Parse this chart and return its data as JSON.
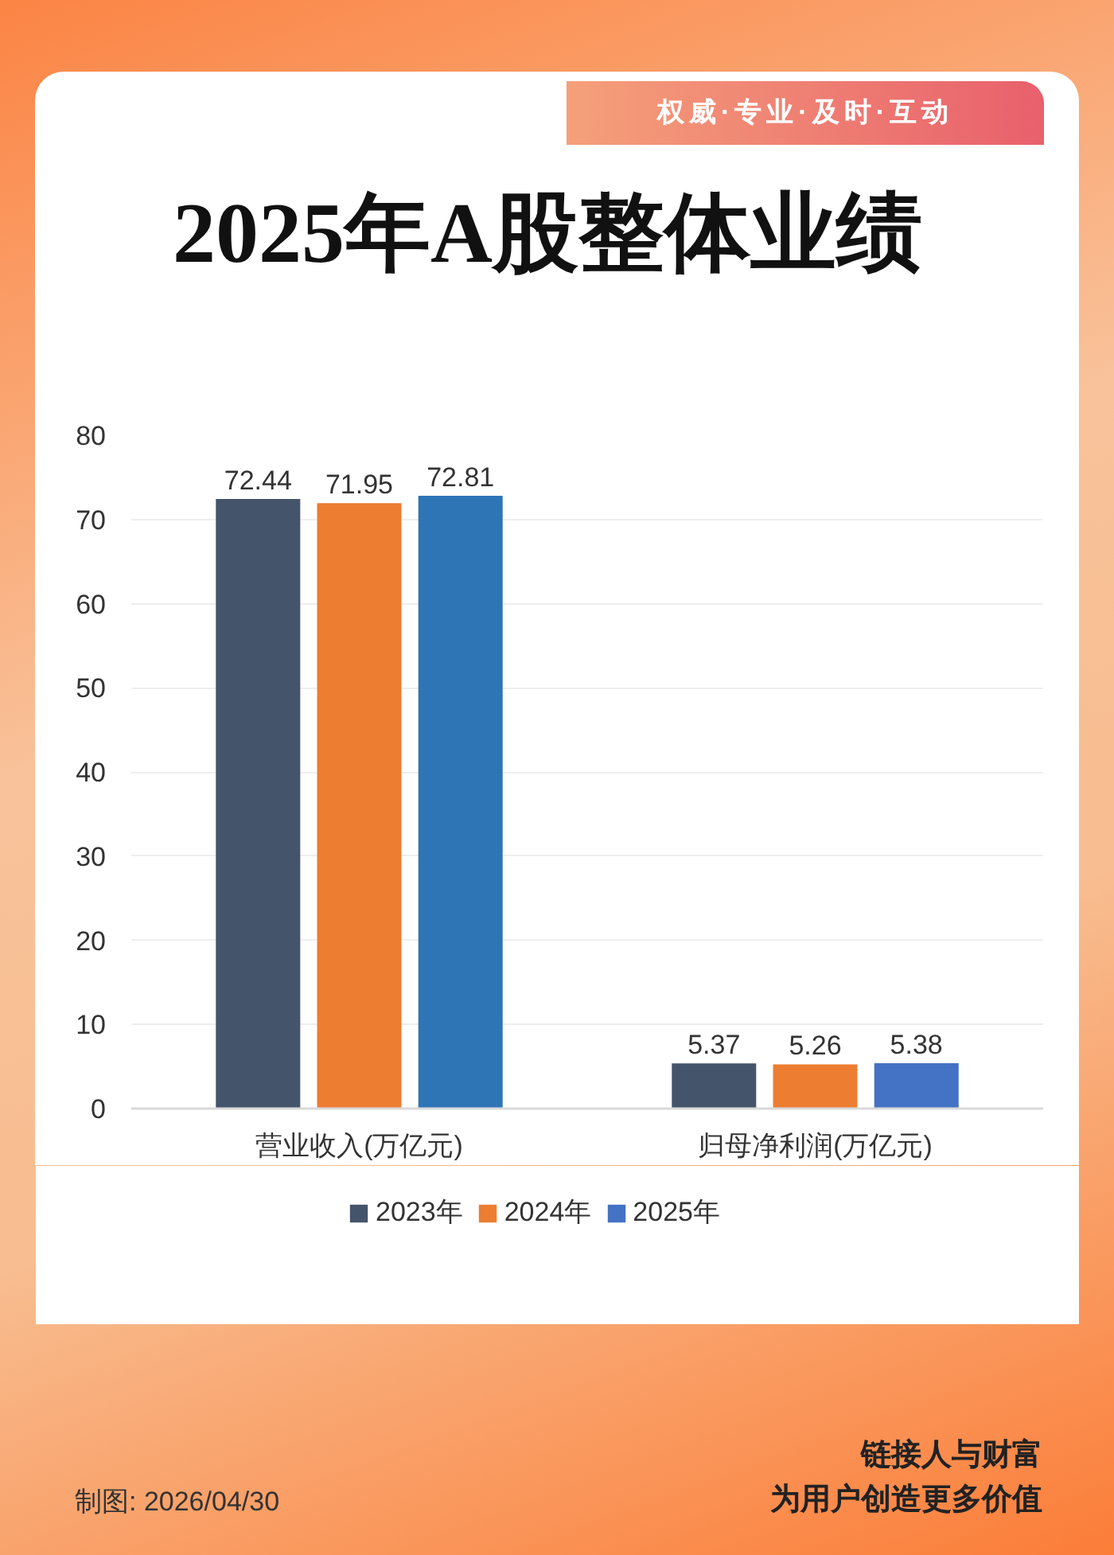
{
  "chart_data": {
    "type": "bar",
    "title": "2025年A股整体业绩",
    "categories": [
      "营业收入(万亿元)",
      "归母净利润(万亿元)"
    ],
    "series": [
      {
        "name": "2023年",
        "color": "#44546a",
        "values": [
          72.44,
          5.37
        ]
      },
      {
        "name": "2024年",
        "color": "#ed7d31",
        "values": [
          71.95,
          5.26
        ]
      },
      {
        "name": "2025年",
        "color": "#4472c4",
        "colors": [
          "#2e75b6",
          "#4472c4"
        ],
        "values": [
          72.81,
          5.38
        ]
      }
    ],
    "ylim": [
      0,
      80
    ],
    "yticks": [
      0,
      10,
      20,
      30,
      40,
      50,
      60,
      70,
      80
    ],
    "grid": "y",
    "legend": "bottom",
    "data_labels": true,
    "annotations": [
      "权威·专业·及时·互动",
      "制图: 2026/04/30",
      "链接人与财富",
      "为用户创造更多价值"
    ]
  }
}
